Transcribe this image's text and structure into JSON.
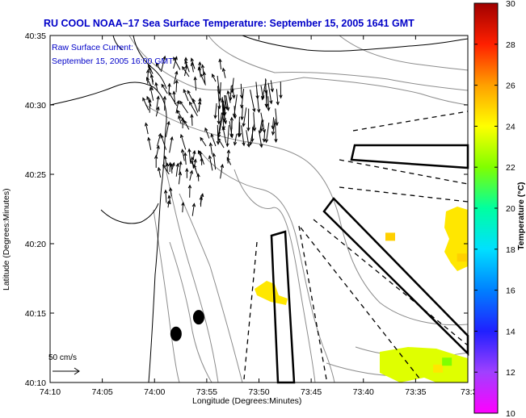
{
  "chart_data": {
    "type": "heatmap",
    "title": "RU COOL  NOAA–17  Sea Surface Temperature:  September 15, 2005 1641 GMT",
    "annotation": [
      "Raw Surface Current:",
      "September 15, 2005 16:00 GMT"
    ],
    "xlabel": "Longitude (Degrees:Minutes)",
    "ylabel": "Latitude (Degrees:Minutes)",
    "x_ticks": [
      "74:10",
      "74:05",
      "74:00",
      "73:55",
      "73:50",
      "73:45",
      "73:40",
      "73:35",
      "73:3"
    ],
    "y_ticks": [
      "40:10",
      "40:15",
      "40:20",
      "40:25",
      "40:30",
      "40:35"
    ],
    "xlim_min_west": [
      10,
      150
    ],
    "ylim_min_north": [
      610,
      635
    ],
    "colorbar": {
      "label": "Temperature (°C)",
      "range": [
        10,
        30
      ],
      "ticks": [
        "10",
        "12",
        "14",
        "16",
        "18",
        "20",
        "22",
        "24",
        "26",
        "28",
        "30"
      ]
    },
    "scale_label": "50 cm/s",
    "sst_patches": [
      {
        "lon_min_west": 122,
        "lat_min_north": 621.0,
        "temp_c": 24.5
      },
      {
        "lon_min_west": 124,
        "lat_min_north": 620.5,
        "temp_c": 25.0
      },
      {
        "lon_min_west": 146,
        "lat_min_north": 620.5,
        "temp_c": 24.5
      },
      {
        "lon_min_west": 148,
        "lat_min_north": 619.0,
        "temp_c": 25.0
      },
      {
        "lon_min_west": 134,
        "lat_min_north": 611.5,
        "temp_c": 23.5
      },
      {
        "lon_min_west": 140,
        "lat_min_north": 611.0,
        "temp_c": 24.5
      },
      {
        "lon_min_west": 143,
        "lat_min_north": 611.5,
        "temp_c": 22.0
      }
    ],
    "stations": [
      {
        "lon_min_west": 59.8,
        "lat_min_north": 614.7
      },
      {
        "lon_min_west": 52.2,
        "lat_min_north": 613.5
      }
    ]
  },
  "colors": {
    "title": "#0000c8",
    "coast": "#000000",
    "bathymetry": "#888888",
    "vectors": "#000000"
  }
}
